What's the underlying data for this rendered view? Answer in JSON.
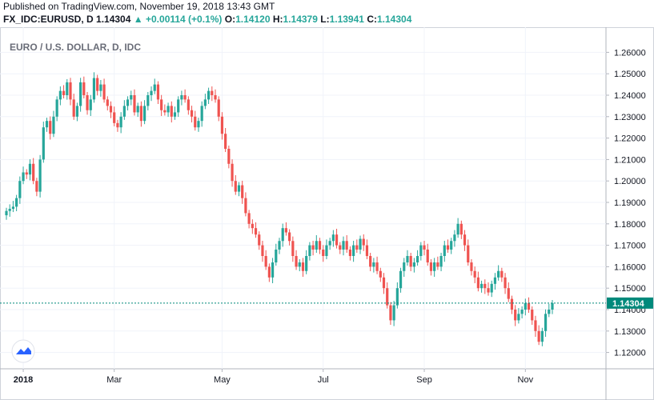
{
  "header": {
    "published": "Published on TradingView.com, November 19, 2018 13:43 GMT",
    "symbol": "FX_IDC:EURUSD, D",
    "last": "1.14304",
    "change_arrow": "▲",
    "change": "+0.00114 (+0.1%)",
    "open_label": "O:",
    "open": "1.14120",
    "high_label": "H:",
    "high": "1.14379",
    "low_label": "L:",
    "low": "1.13941",
    "close_label": "C:",
    "close": "1.14304"
  },
  "colors": {
    "up": "#26a69a",
    "down": "#ef5350",
    "price_line": "#00897b"
  },
  "chart_data": {
    "type": "candlestick",
    "title": "EURO / U.S. DOLLAR, D, IDC",
    "ylim": [
      1.115,
      1.265
    ],
    "yticks": [
      "1.26000",
      "1.25000",
      "1.24000",
      "1.23000",
      "1.22000",
      "1.21000",
      "1.20000",
      "1.19000",
      "1.18000",
      "1.17000",
      "1.16000",
      "1.15000",
      "1.14000",
      "1.13000",
      "1.12000"
    ],
    "xticks": [
      {
        "label": "2018",
        "index": 5,
        "bold": true
      },
      {
        "label": "Mar",
        "index": 32,
        "bold": false
      },
      {
        "label": "May",
        "index": 64,
        "bold": false
      },
      {
        "label": "Jul",
        "index": 94,
        "bold": false
      },
      {
        "label": "Sep",
        "index": 124,
        "bold": false
      },
      {
        "label": "Nov",
        "index": 154,
        "bold": false
      }
    ],
    "last_price": 1.14304,
    "last_price_label": "1.14304",
    "close": [
      1.186,
      1.187,
      1.188,
      1.192,
      1.2,
      1.204,
      1.203,
      1.208,
      1.2,
      1.195,
      1.21,
      1.225,
      1.228,
      1.222,
      1.23,
      1.238,
      1.242,
      1.24,
      1.246,
      1.238,
      1.23,
      1.235,
      1.246,
      1.24,
      1.233,
      1.238,
      1.248,
      1.242,
      1.245,
      1.238,
      1.235,
      1.232,
      1.227,
      1.225,
      1.23,
      1.235,
      1.238,
      1.24,
      1.232,
      1.235,
      1.228,
      1.235,
      1.24,
      1.242,
      1.245,
      1.238,
      1.233,
      1.232,
      1.235,
      1.23,
      1.232,
      1.238,
      1.24,
      1.238,
      1.233,
      1.23,
      1.225,
      1.228,
      1.235,
      1.238,
      1.242,
      1.24,
      1.238,
      1.23,
      1.222,
      1.215,
      1.208,
      1.2,
      1.195,
      1.198,
      1.192,
      1.185,
      1.18,
      1.178,
      1.175,
      1.17,
      1.165,
      1.16,
      1.155,
      1.162,
      1.168,
      1.172,
      1.178,
      1.176,
      1.172,
      1.165,
      1.16,
      1.162,
      1.158,
      1.165,
      1.17,
      1.168,
      1.172,
      1.168,
      1.165,
      1.17,
      1.172,
      1.175,
      1.17,
      1.168,
      1.172,
      1.168,
      1.165,
      1.17,
      1.168,
      1.173,
      1.17,
      1.165,
      1.16,
      1.162,
      1.158,
      1.155,
      1.15,
      1.142,
      1.135,
      1.142,
      1.15,
      1.158,
      1.162,
      1.165,
      1.16,
      1.162,
      1.165,
      1.17,
      1.168,
      1.162,
      1.158,
      1.162,
      1.16,
      1.165,
      1.17,
      1.168,
      1.172,
      1.175,
      1.18,
      1.175,
      1.17,
      1.162,
      1.158,
      1.155,
      1.15,
      1.152,
      1.15,
      1.148,
      1.152,
      1.155,
      1.158,
      1.155,
      1.15,
      1.145,
      1.14,
      1.135,
      1.138,
      1.14,
      1.143,
      1.14,
      1.135,
      1.13,
      1.125,
      1.13,
      1.138,
      1.14,
      1.143
    ]
  }
}
